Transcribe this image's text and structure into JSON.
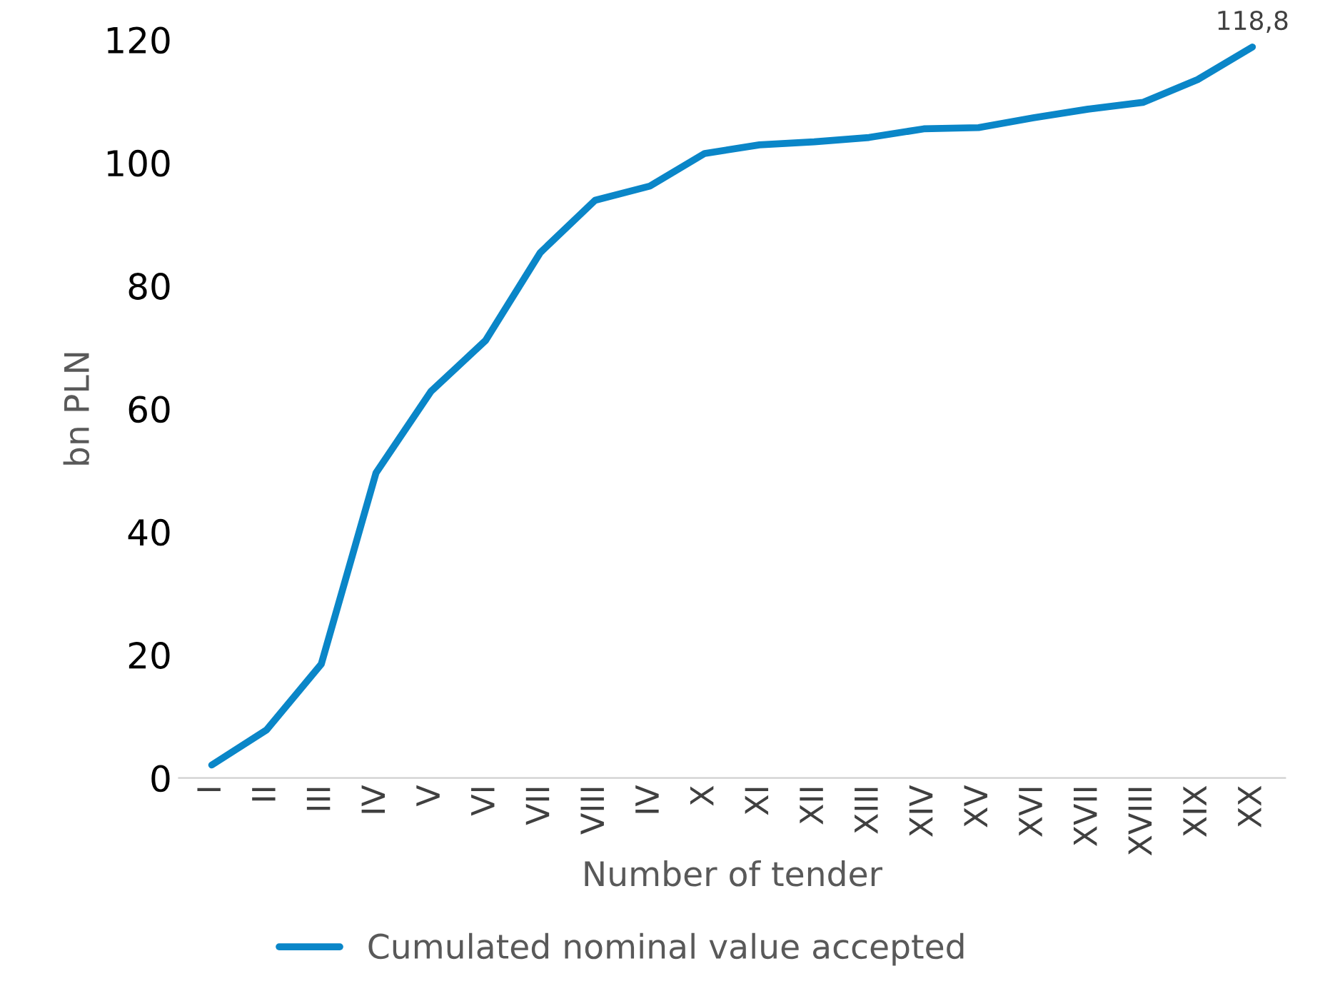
{
  "chart_data": {
    "type": "line",
    "xlabel": "Number of tender",
    "ylabel": "bn PLN",
    "categories": [
      "I",
      "II",
      "III",
      "IV",
      "V",
      "VI",
      "VII",
      "VIII",
      "IV",
      "X",
      "XI",
      "XII",
      "XIII",
      "XIV",
      "XV",
      "XVI",
      "XVII",
      "XVIII",
      "XIX",
      "XX"
    ],
    "series": [
      {
        "name": "Cumulated nominal value accepted",
        "color": "#0a86c8",
        "values": [
          2.1,
          7.8,
          18.5,
          49.6,
          62.8,
          71.1,
          85.4,
          93.9,
          96.2,
          101.5,
          102.9,
          103.4,
          104.1,
          105.5,
          105.7,
          107.3,
          108.7,
          109.8,
          113.5,
          118.8
        ],
        "value_labels": [
          null,
          null,
          null,
          null,
          null,
          null,
          null,
          null,
          null,
          null,
          null,
          null,
          null,
          null,
          null,
          null,
          null,
          null,
          null,
          "118,8"
        ]
      }
    ],
    "ylim": [
      0,
      120
    ],
    "yticks": [
      0,
      20,
      40,
      60,
      80,
      100,
      120
    ],
    "grid": false,
    "legend": "bottom",
    "marker": "none",
    "line_style": "solid"
  }
}
